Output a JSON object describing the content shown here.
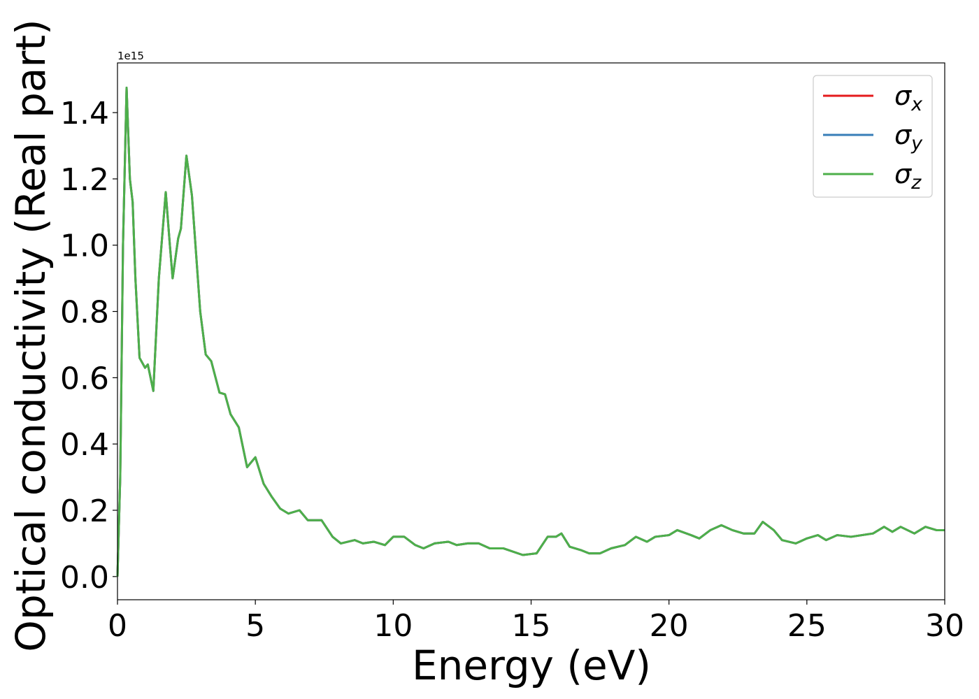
{
  "chart_data": {
    "type": "line",
    "xlabel": "Energy (eV)",
    "ylabel": "Optical conductivity (Real part)",
    "y_offset_text": "1e15",
    "x": [
      0,
      0.1,
      0.2,
      0.33,
      0.45,
      0.55,
      0.65,
      0.8,
      1.0,
      1.1,
      1.3,
      1.5,
      1.75,
      1.9,
      2.0,
      2.2,
      2.3,
      2.5,
      2.7,
      3.0,
      3.2,
      3.4,
      3.7,
      3.9,
      4.1,
      4.4,
      4.7,
      5.0,
      5.3,
      5.6,
      5.9,
      6.2,
      6.6,
      6.9,
      7.4,
      7.8,
      8.1,
      8.6,
      8.9,
      9.3,
      9.7,
      10.0,
      10.4,
      10.8,
      11.1,
      11.5,
      12.0,
      12.3,
      12.7,
      13.1,
      13.5,
      14.0,
      14.7,
      15.2,
      15.6,
      15.9,
      16.1,
      16.4,
      16.8,
      17.1,
      17.5,
      17.9,
      18.4,
      18.8,
      19.2,
      19.5,
      20.0,
      20.3,
      20.8,
      21.1,
      21.5,
      21.9,
      22.3,
      22.7,
      23.1,
      23.4,
      23.8,
      24.1,
      24.6,
      25.0,
      25.4,
      25.7,
      26.1,
      26.6,
      27.0,
      27.4,
      27.8,
      28.1,
      28.4,
      28.9,
      29.3,
      29.7,
      30.0
    ],
    "series": [
      {
        "name": "σx",
        "color": "#e41a1c",
        "values": [
          0.0,
          0.3,
          1.0,
          1.475,
          1.2,
          1.13,
          0.9,
          0.66,
          0.63,
          0.64,
          0.56,
          0.9,
          1.16,
          1.0,
          0.9,
          1.02,
          1.05,
          1.27,
          1.15,
          0.8,
          0.67,
          0.65,
          0.555,
          0.55,
          0.49,
          0.45,
          0.33,
          0.36,
          0.28,
          0.24,
          0.205,
          0.19,
          0.2,
          0.17,
          0.17,
          0.12,
          0.1,
          0.11,
          0.1,
          0.105,
          0.095,
          0.12,
          0.12,
          0.095,
          0.085,
          0.1,
          0.105,
          0.095,
          0.1,
          0.1,
          0.085,
          0.085,
          0.065,
          0.07,
          0.12,
          0.12,
          0.13,
          0.09,
          0.08,
          0.07,
          0.07,
          0.085,
          0.095,
          0.12,
          0.105,
          0.12,
          0.125,
          0.14,
          0.125,
          0.115,
          0.14,
          0.155,
          0.14,
          0.13,
          0.13,
          0.165,
          0.14,
          0.11,
          0.1,
          0.115,
          0.125,
          0.11,
          0.125,
          0.12,
          0.125,
          0.13,
          0.15,
          0.135,
          0.15,
          0.13,
          0.15,
          0.14,
          0.14
        ]
      },
      {
        "name": "σy",
        "color": "#377eb8",
        "values": [
          0.0,
          0.3,
          1.0,
          1.475,
          1.2,
          1.13,
          0.9,
          0.66,
          0.63,
          0.64,
          0.56,
          0.9,
          1.16,
          1.0,
          0.9,
          1.02,
          1.05,
          1.27,
          1.15,
          0.8,
          0.67,
          0.65,
          0.555,
          0.55,
          0.49,
          0.45,
          0.33,
          0.36,
          0.28,
          0.24,
          0.205,
          0.19,
          0.2,
          0.17,
          0.17,
          0.12,
          0.1,
          0.11,
          0.1,
          0.105,
          0.095,
          0.12,
          0.12,
          0.095,
          0.085,
          0.1,
          0.105,
          0.095,
          0.1,
          0.1,
          0.085,
          0.085,
          0.065,
          0.07,
          0.12,
          0.12,
          0.13,
          0.09,
          0.08,
          0.07,
          0.07,
          0.085,
          0.095,
          0.12,
          0.105,
          0.12,
          0.125,
          0.14,
          0.125,
          0.115,
          0.14,
          0.155,
          0.14,
          0.13,
          0.13,
          0.165,
          0.14,
          0.11,
          0.1,
          0.115,
          0.125,
          0.11,
          0.125,
          0.12,
          0.125,
          0.13,
          0.15,
          0.135,
          0.15,
          0.13,
          0.15,
          0.14,
          0.14
        ]
      },
      {
        "name": "σz",
        "color": "#4daf4a",
        "values": [
          0.0,
          0.3,
          1.0,
          1.475,
          1.2,
          1.13,
          0.9,
          0.66,
          0.63,
          0.64,
          0.56,
          0.9,
          1.16,
          1.0,
          0.9,
          1.02,
          1.05,
          1.27,
          1.15,
          0.8,
          0.67,
          0.65,
          0.555,
          0.55,
          0.49,
          0.45,
          0.33,
          0.36,
          0.28,
          0.24,
          0.205,
          0.19,
          0.2,
          0.17,
          0.17,
          0.12,
          0.1,
          0.11,
          0.1,
          0.105,
          0.095,
          0.12,
          0.12,
          0.095,
          0.085,
          0.1,
          0.105,
          0.095,
          0.1,
          0.1,
          0.085,
          0.085,
          0.065,
          0.07,
          0.12,
          0.12,
          0.13,
          0.09,
          0.08,
          0.07,
          0.07,
          0.085,
          0.095,
          0.12,
          0.105,
          0.12,
          0.125,
          0.14,
          0.125,
          0.115,
          0.14,
          0.155,
          0.14,
          0.13,
          0.13,
          0.165,
          0.14,
          0.11,
          0.1,
          0.115,
          0.125,
          0.11,
          0.125,
          0.12,
          0.125,
          0.13,
          0.15,
          0.135,
          0.15,
          0.13,
          0.15,
          0.14,
          0.14
        ]
      }
    ],
    "xlim": [
      0,
      30
    ],
    "xticks": [
      0,
      5,
      10,
      15,
      20,
      25,
      30
    ],
    "ylim": [
      -0.07,
      1.55
    ],
    "yticks": [
      {
        "value": 0,
        "label": "0.0"
      },
      0.2,
      0.4,
      0.6,
      0.8,
      {
        "value": 1,
        "label": "1.0"
      },
      1.2,
      1.4
    ],
    "grid": false,
    "legend": "upper right"
  }
}
